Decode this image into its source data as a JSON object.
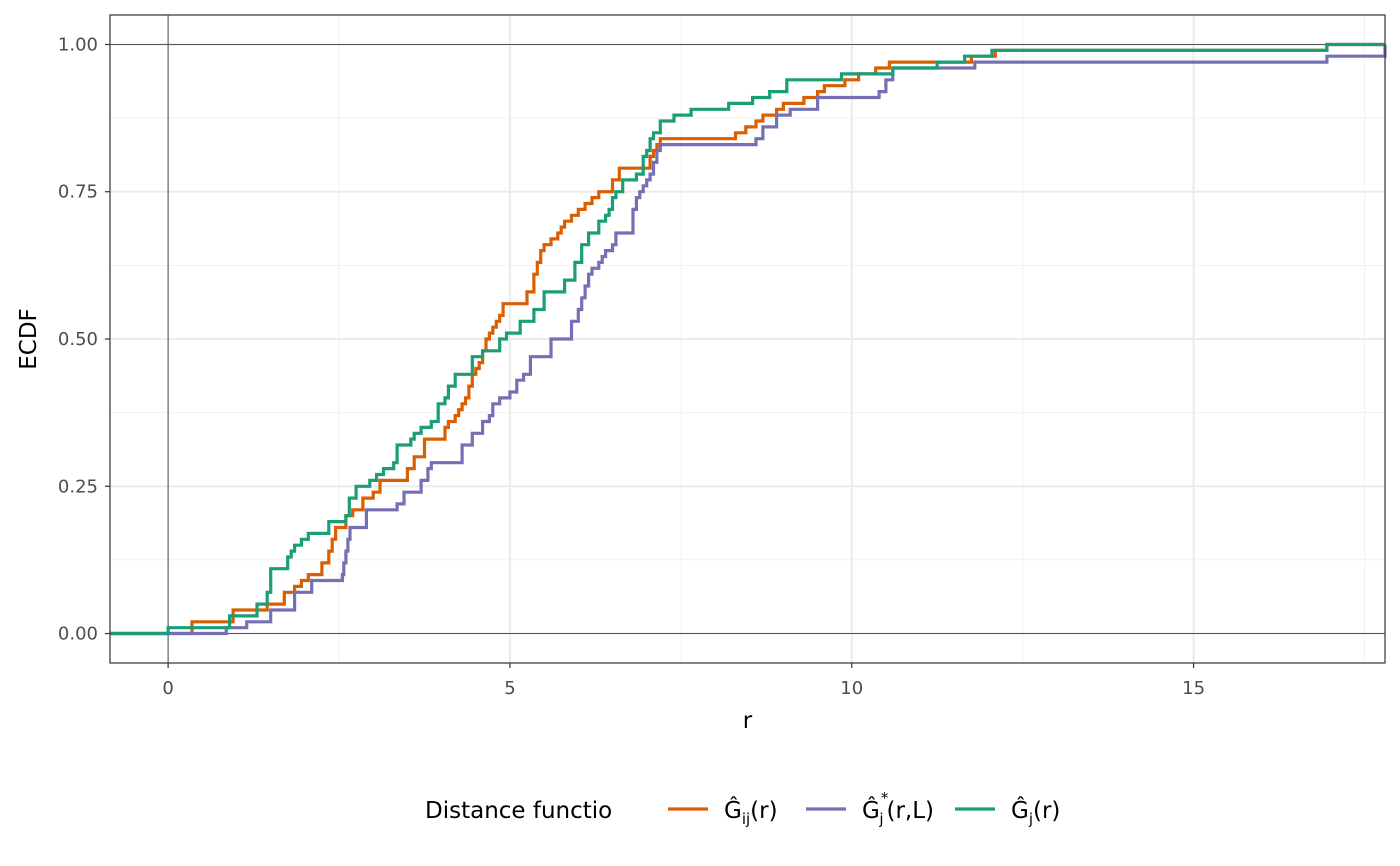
{
  "chart_data": {
    "type": "line",
    "step": true,
    "xlabel": "r",
    "ylabel": "ECDF",
    "xlim": [
      -0.85,
      17.8
    ],
    "ylim": [
      -0.05,
      1.05
    ],
    "x_ticks": [
      0,
      5,
      10,
      15
    ],
    "x_tick_labels": [
      "0",
      "5",
      "10",
      "15"
    ],
    "y_ticks": [
      0,
      0.25,
      0.5,
      0.75,
      1.0
    ],
    "y_tick_labels": [
      "0.00",
      "0.25",
      "0.50",
      "0.75",
      "1.00"
    ],
    "grid": true,
    "reference_lines": {
      "x": 0,
      "y": [
        0,
        1
      ]
    },
    "legend": {
      "title": "Distance functio",
      "position": "bottom",
      "entries": [
        {
          "hat": "Ĝ",
          "sub": "ij",
          "sup": "",
          "suffix": "(r)",
          "color": "#D95F02"
        },
        {
          "hat": "Ĝ",
          "sub": "j",
          "sup": "*",
          "suffix": "(r,L)",
          "color": "#7570B3"
        },
        {
          "hat": "Ĝ",
          "sub": "j",
          "sup": "",
          "suffix": "(r)",
          "color": "#1B9E77"
        }
      ]
    },
    "series": [
      {
        "color": "#D95F02",
        "x": [
          -0.85,
          0.35,
          0.95,
          1.45,
          1.7,
          1.85,
          1.95,
          2.05,
          2.25,
          2.35,
          2.4,
          2.45,
          2.6,
          2.7,
          2.85,
          3.0,
          3.1,
          3.5,
          3.6,
          3.75,
          4.05,
          4.1,
          4.2,
          4.25,
          4.3,
          4.35,
          4.4,
          4.45,
          4.5,
          4.55,
          4.6,
          4.65,
          4.7,
          4.75,
          4.8,
          4.85,
          4.9,
          5.0,
          5.25,
          5.35,
          5.4,
          5.45,
          5.5,
          5.6,
          5.7,
          5.75,
          5.8,
          5.9,
          6.0,
          6.1,
          6.2,
          6.3,
          6.4,
          6.5,
          6.6,
          7.05,
          7.1,
          7.15,
          7.2,
          8.3,
          8.45,
          8.6,
          8.7,
          8.9,
          9.0,
          9.3,
          9.5,
          9.6,
          9.9,
          10.1,
          10.35,
          10.55,
          11.75,
          12.1,
          16.95,
          17.8
        ],
        "y": [
          0.0,
          0.02,
          0.04,
          0.05,
          0.07,
          0.08,
          0.09,
          0.1,
          0.12,
          0.14,
          0.16,
          0.18,
          0.2,
          0.21,
          0.23,
          0.24,
          0.26,
          0.28,
          0.3,
          0.33,
          0.35,
          0.36,
          0.37,
          0.38,
          0.39,
          0.4,
          0.42,
          0.44,
          0.45,
          0.46,
          0.48,
          0.5,
          0.51,
          0.52,
          0.53,
          0.54,
          0.56,
          0.56,
          0.58,
          0.61,
          0.63,
          0.65,
          0.66,
          0.67,
          0.68,
          0.69,
          0.7,
          0.71,
          0.72,
          0.73,
          0.74,
          0.75,
          0.75,
          0.77,
          0.79,
          0.81,
          0.82,
          0.83,
          0.84,
          0.85,
          0.86,
          0.87,
          0.88,
          0.89,
          0.9,
          0.91,
          0.92,
          0.93,
          0.94,
          0.95,
          0.96,
          0.97,
          0.98,
          0.99,
          1.0,
          1.0
        ]
      },
      {
        "color": "#7570B3",
        "x": [
          -0.85,
          0.85,
          1.15,
          1.5,
          1.85,
          2.1,
          2.55,
          2.57,
          2.6,
          2.63,
          2.66,
          2.9,
          3.35,
          3.45,
          3.7,
          3.8,
          3.85,
          4.3,
          4.45,
          4.6,
          4.7,
          4.75,
          4.85,
          5.0,
          5.1,
          5.2,
          5.3,
          5.6,
          5.9,
          6.0,
          6.05,
          6.1,
          6.15,
          6.2,
          6.3,
          6.35,
          6.4,
          6.5,
          6.55,
          6.8,
          6.85,
          6.9,
          6.95,
          7.0,
          7.05,
          7.1,
          7.15,
          7.2,
          8.6,
          8.7,
          8.9,
          9.1,
          9.5,
          10.4,
          10.5,
          10.6,
          11.8,
          16.95,
          17.8
        ],
        "y": [
          0.0,
          0.01,
          0.02,
          0.04,
          0.07,
          0.09,
          0.1,
          0.12,
          0.14,
          0.16,
          0.18,
          0.21,
          0.22,
          0.24,
          0.26,
          0.28,
          0.29,
          0.32,
          0.34,
          0.36,
          0.37,
          0.39,
          0.4,
          0.41,
          0.43,
          0.44,
          0.47,
          0.5,
          0.53,
          0.55,
          0.57,
          0.59,
          0.61,
          0.62,
          0.63,
          0.64,
          0.65,
          0.66,
          0.68,
          0.72,
          0.74,
          0.75,
          0.76,
          0.77,
          0.78,
          0.8,
          0.82,
          0.83,
          0.84,
          0.86,
          0.88,
          0.89,
          0.91,
          0.92,
          0.94,
          0.96,
          0.97,
          0.98,
          1.0
        ]
      },
      {
        "color": "#1B9E77",
        "x": [
          -0.85,
          0.0,
          0.9,
          1.3,
          1.45,
          1.5,
          1.75,
          1.8,
          1.85,
          1.95,
          2.05,
          2.35,
          2.6,
          2.65,
          2.75,
          2.95,
          3.05,
          3.15,
          3.3,
          3.35,
          3.55,
          3.6,
          3.7,
          3.85,
          3.95,
          4.05,
          4.1,
          4.2,
          4.45,
          4.6,
          4.85,
          4.95,
          5.15,
          5.35,
          5.5,
          5.8,
          5.95,
          6.05,
          6.15,
          6.3,
          6.4,
          6.45,
          6.5,
          6.55,
          6.65,
          6.85,
          6.95,
          7.0,
          7.05,
          7.1,
          7.2,
          7.4,
          7.65,
          8.2,
          8.55,
          8.8,
          9.05,
          9.85,
          10.6,
          11.25,
          11.65,
          12.05,
          12.1,
          16.95,
          17.8
        ],
        "y": [
          0.0,
          0.01,
          0.03,
          0.05,
          0.07,
          0.11,
          0.13,
          0.14,
          0.15,
          0.16,
          0.17,
          0.19,
          0.2,
          0.23,
          0.25,
          0.26,
          0.27,
          0.28,
          0.29,
          0.32,
          0.33,
          0.34,
          0.35,
          0.36,
          0.39,
          0.4,
          0.42,
          0.44,
          0.47,
          0.48,
          0.5,
          0.51,
          0.53,
          0.55,
          0.58,
          0.6,
          0.63,
          0.66,
          0.68,
          0.7,
          0.71,
          0.72,
          0.74,
          0.75,
          0.77,
          0.78,
          0.81,
          0.82,
          0.84,
          0.85,
          0.87,
          0.88,
          0.89,
          0.9,
          0.91,
          0.92,
          0.94,
          0.95,
          0.96,
          0.97,
          0.98,
          0.99,
          0.99,
          1.0,
          1.0
        ]
      }
    ]
  }
}
